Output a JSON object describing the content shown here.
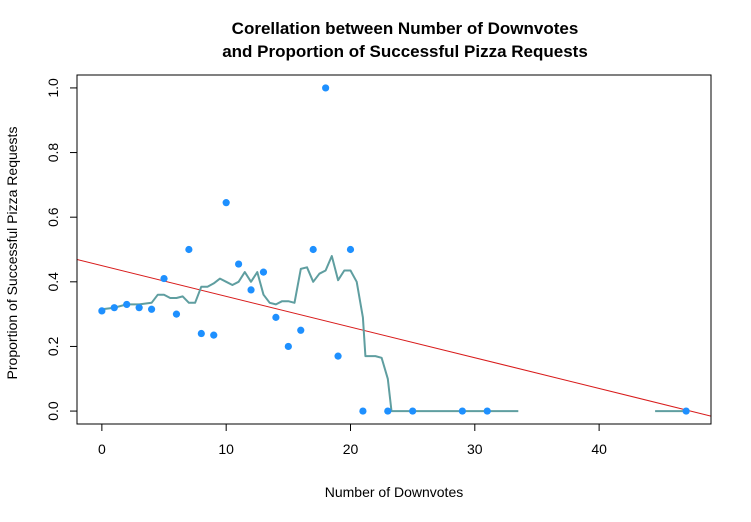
{
  "chart_data": {
    "type": "scatter",
    "title_line1": "Corellation between Number of Downvotes",
    "title_line2": "and Proportion of Successful Pizza Requests",
    "xlabel": "Number of Downvotes",
    "ylabel": "Proportion of Successful Pizza Requests",
    "xlim": [
      -2,
      49
    ],
    "ylim": [
      -0.04,
      1.04
    ],
    "x_ticks": [
      0,
      10,
      20,
      30,
      40
    ],
    "y_ticks": [
      0.0,
      0.2,
      0.4,
      0.6,
      0.8,
      1.0
    ],
    "x_tick_labels": [
      "0",
      "10",
      "20",
      "30",
      "40"
    ],
    "y_tick_labels": [
      "0.0",
      "0.2",
      "0.4",
      "0.6",
      "0.8",
      "1.0"
    ],
    "points": [
      {
        "x": 0,
        "y": 0.31
      },
      {
        "x": 1,
        "y": 0.32
      },
      {
        "x": 2,
        "y": 0.33
      },
      {
        "x": 3,
        "y": 0.32
      },
      {
        "x": 4,
        "y": 0.315
      },
      {
        "x": 5,
        "y": 0.41
      },
      {
        "x": 6,
        "y": 0.3
      },
      {
        "x": 7,
        "y": 0.5
      },
      {
        "x": 8,
        "y": 0.24
      },
      {
        "x": 9,
        "y": 0.235
      },
      {
        "x": 10,
        "y": 0.645
      },
      {
        "x": 11,
        "y": 0.455
      },
      {
        "x": 12,
        "y": 0.375
      },
      {
        "x": 13,
        "y": 0.43
      },
      {
        "x": 14,
        "y": 0.29
      },
      {
        "x": 15,
        "y": 0.2
      },
      {
        "x": 16,
        "y": 0.25
      },
      {
        "x": 17,
        "y": 0.5
      },
      {
        "x": 18,
        "y": 1.0
      },
      {
        "x": 19,
        "y": 0.17
      },
      {
        "x": 20,
        "y": 0.5
      },
      {
        "x": 21,
        "y": 0.0
      },
      {
        "x": 23,
        "y": 0.0
      },
      {
        "x": 25,
        "y": 0.0
      },
      {
        "x": 29,
        "y": 0.0
      },
      {
        "x": 31,
        "y": 0.0
      },
      {
        "x": 47,
        "y": 0.0
      }
    ],
    "smooth_line": {
      "color": "#5f9ea0",
      "segments": [
        [
          [
            0,
            0.315
          ],
          [
            1,
            0.32
          ],
          [
            2,
            0.33
          ],
          [
            3,
            0.33
          ],
          [
            4,
            0.335
          ],
          [
            4.5,
            0.36
          ],
          [
            5,
            0.36
          ],
          [
            5.5,
            0.35
          ],
          [
            6,
            0.35
          ],
          [
            6.5,
            0.355
          ],
          [
            7,
            0.335
          ],
          [
            7.5,
            0.335
          ],
          [
            8,
            0.385
          ],
          [
            8.5,
            0.385
          ],
          [
            9,
            0.395
          ],
          [
            9.5,
            0.41
          ],
          [
            10,
            0.4
          ],
          [
            10.5,
            0.39
          ],
          [
            11,
            0.4
          ],
          [
            11.5,
            0.43
          ],
          [
            12,
            0.4
          ],
          [
            12.5,
            0.43
          ],
          [
            13,
            0.36
          ],
          [
            13.5,
            0.335
          ],
          [
            14,
            0.33
          ],
          [
            14.5,
            0.34
          ],
          [
            15,
            0.34
          ],
          [
            15.5,
            0.335
          ],
          [
            16,
            0.44
          ],
          [
            16.5,
            0.445
          ],
          [
            17,
            0.4
          ],
          [
            17.5,
            0.425
          ],
          [
            18,
            0.435
          ],
          [
            18.5,
            0.48
          ],
          [
            19,
            0.405
          ],
          [
            19.5,
            0.435
          ],
          [
            20,
            0.435
          ],
          [
            20.5,
            0.4
          ],
          [
            21,
            0.29
          ],
          [
            21.2,
            0.17
          ],
          [
            22,
            0.17
          ],
          [
            22.5,
            0.165
          ],
          [
            23,
            0.1
          ],
          [
            23.3,
            0.0
          ],
          [
            24,
            0.0
          ],
          [
            28,
            0.0
          ],
          [
            33.5,
            0.0
          ]
        ],
        [
          [
            44.5,
            0.0
          ],
          [
            47,
            0.0
          ]
        ]
      ]
    },
    "regression_line": {
      "color": "#d81b1b",
      "intercept": 0.45,
      "slope": -0.0095
    },
    "point_color": "#1e90ff"
  }
}
